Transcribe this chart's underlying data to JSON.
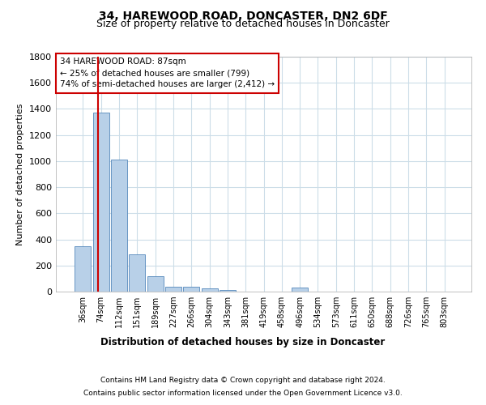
{
  "title1": "34, HAREWOOD ROAD, DONCASTER, DN2 6DF",
  "title2": "Size of property relative to detached houses in Doncaster",
  "xlabel": "Distribution of detached houses by size in Doncaster",
  "ylabel": "Number of detached properties",
  "property_label": "34 HAREWOOD ROAD: 87sqm",
  "annotation_line1": "← 25% of detached houses are smaller (799)",
  "annotation_line2": "74% of semi-detached houses are larger (2,412) →",
  "categories": [
    "36sqm",
    "74sqm",
    "112sqm",
    "151sqm",
    "189sqm",
    "227sqm",
    "266sqm",
    "304sqm",
    "343sqm",
    "381sqm",
    "419sqm",
    "458sqm",
    "496sqm",
    "534sqm",
    "573sqm",
    "611sqm",
    "650sqm",
    "688sqm",
    "726sqm",
    "765sqm",
    "803sqm"
  ],
  "values": [
    350,
    1370,
    1010,
    285,
    120,
    40,
    35,
    25,
    15,
    0,
    0,
    0,
    30,
    0,
    0,
    0,
    0,
    0,
    0,
    0,
    0
  ],
  "bar_color": "#b8d0e8",
  "bar_edge_color": "#5588bb",
  "vline_color": "#cc0000",
  "box_edge_color": "#cc0000",
  "background_color": "#ffffff",
  "grid_color": "#ccdde8",
  "ylim_max": 1800,
  "yticks": [
    0,
    200,
    400,
    600,
    800,
    1000,
    1200,
    1400,
    1600,
    1800
  ],
  "footer1": "Contains HM Land Registry data © Crown copyright and database right 2024.",
  "footer2": "Contains public sector information licensed under the Open Government Licence v3.0.",
  "vline_x": 0.842
}
